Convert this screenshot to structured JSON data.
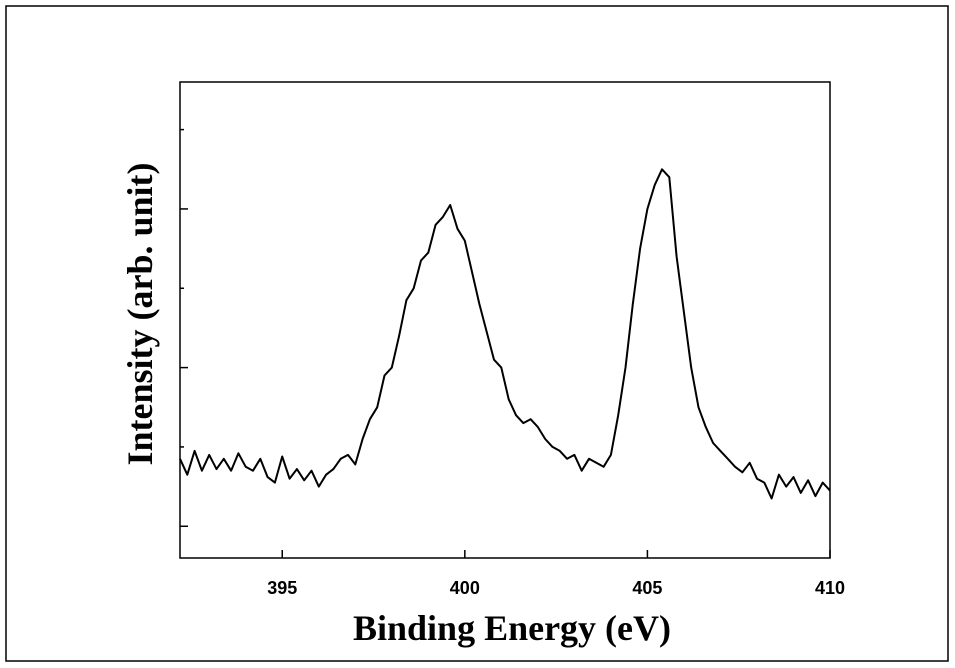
{
  "chart_data": {
    "type": "line",
    "xlabel": "Binding Energy (eV)",
    "ylabel": "Intensity (arb. unit)",
    "color": "#000000",
    "x": [
      392.2,
      392.4,
      392.6,
      392.8,
      393.0,
      393.2,
      393.4,
      393.6,
      393.8,
      394.0,
      394.2,
      394.4,
      394.6,
      394.8,
      395.0,
      395.2,
      395.4,
      395.6,
      395.8,
      396.0,
      396.2,
      396.4,
      396.6,
      396.8,
      397.0,
      397.2,
      397.4,
      397.6,
      397.8,
      398.0,
      398.2,
      398.4,
      398.6,
      398.8,
      399.0,
      399.2,
      399.4,
      399.6,
      399.8,
      400.0,
      400.2,
      400.4,
      400.6,
      400.8,
      401.0,
      401.2,
      401.4,
      401.6,
      401.8,
      402.0,
      402.2,
      402.4,
      402.6,
      402.8,
      403.0,
      403.2,
      403.4,
      403.6,
      403.8,
      404.0,
      404.2,
      404.4,
      404.6,
      404.8,
      405.0,
      405.2,
      405.4,
      405.6,
      405.8,
      406.0,
      406.2,
      406.4,
      406.6,
      406.8,
      407.0,
      407.2,
      407.4,
      407.6,
      407.8,
      408.0,
      408.2,
      408.4,
      408.6,
      408.8,
      409.0,
      409.2,
      409.4,
      409.6,
      409.8,
      410.0
    ],
    "values": [
      0.85,
      0.65,
      0.95,
      0.7,
      0.9,
      0.72,
      0.85,
      0.7,
      0.92,
      0.75,
      0.7,
      0.85,
      0.62,
      0.55,
      0.88,
      0.6,
      0.72,
      0.58,
      0.7,
      0.5,
      0.65,
      0.72,
      0.85,
      0.9,
      0.78,
      1.1,
      1.35,
      1.5,
      1.9,
      2.0,
      2.4,
      2.85,
      3.0,
      3.35,
      3.45,
      3.8,
      3.9,
      4.05,
      3.75,
      3.6,
      3.2,
      2.8,
      2.45,
      2.1,
      2.0,
      1.6,
      1.4,
      1.3,
      1.35,
      1.25,
      1.1,
      1.0,
      0.95,
      0.85,
      0.9,
      0.7,
      0.85,
      0.8,
      0.75,
      0.9,
      1.4,
      2.0,
      2.8,
      3.5,
      4.0,
      4.3,
      4.5,
      4.4,
      3.4,
      2.7,
      2.0,
      1.5,
      1.25,
      1.05,
      0.95,
      0.85,
      0.75,
      0.68,
      0.8,
      0.6,
      0.55,
      0.35,
      0.65,
      0.5,
      0.62,
      0.42,
      0.58,
      0.38,
      0.55,
      0.45
    ],
    "xlim": [
      392.2,
      410
    ],
    "xticks": [
      395,
      400,
      405,
      410
    ],
    "ylim": [
      -0.4,
      5.6
    ],
    "yticks": [
      0,
      1,
      2,
      3,
      4,
      5
    ]
  }
}
